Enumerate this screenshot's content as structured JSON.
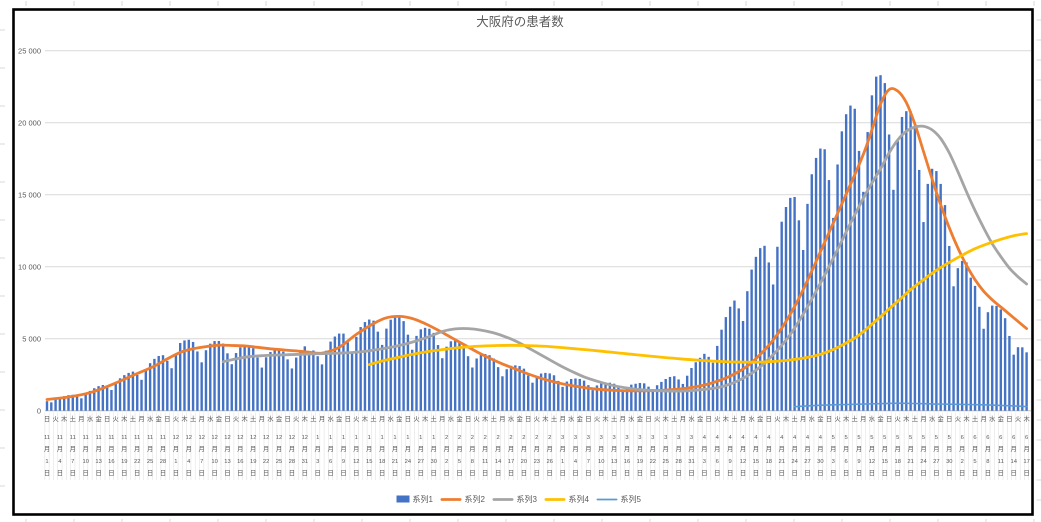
{
  "title": "大阪府の患者数",
  "colors": {
    "bar_blue": "#4472C4",
    "line_orange": "#ED7D31",
    "line_gray": "#A5A5A5",
    "line_yellow": "#FFC000",
    "line_lightblue": "#5B9BD5",
    "gridline": "#D9D9D9",
    "axis_line": "#BFBFBF",
    "label_text": "#595959",
    "chart_border": "#000000",
    "category_separator": "#E2E2E2",
    "sheet_tick": "#D9D9D9"
  },
  "chart_data": {
    "type": "combo bar+line",
    "title": "大阪府の患者数",
    "grid": "horizontal only",
    "y_axis": {
      "min": 0,
      "max": 25000,
      "tick_interval": 5000,
      "tick_values": [
        0,
        5000,
        10000,
        15000,
        20000,
        25000
      ],
      "tick_labels": [
        "0",
        "5 000",
        "10 000",
        "15 000",
        "20 000",
        "25 000"
      ]
    },
    "x_axis": {
      "unit": "day",
      "n_categories": 229,
      "start_date": "11月1日",
      "end_date": "6月17日",
      "weekday_label_interval_days": 2,
      "date_label_interval_days": 3,
      "weekday_labels": "日火木土月水金日火木土月水金日火木土月水金日火木土月水金日火木土月水金日火木土月水金日火木土月水金日火木土月水金日火木土月水金日火木土月水金日火木土月水金日火木土月水金日火木土月水金日火木土月水金日火木土月水金日火木土月水金日火木",
      "date_labels": [
        "11月1日",
        "11月4日",
        "11月7日",
        "11月10日",
        "11月13日",
        "11月16日",
        "11月19日",
        "11月22日",
        "11月25日",
        "11月28日",
        "12月1日",
        "12月4日",
        "12月7日",
        "12月10日",
        "12月13日",
        "12月16日",
        "12月19日",
        "12月22日",
        "12月25日",
        "12月28日",
        "12月31日",
        "1月3日",
        "1月6日",
        "1月9日",
        "1月12日",
        "1月15日",
        "1月18日",
        "1月21日",
        "1月24日",
        "1月27日",
        "1月30日",
        "2月2日",
        "2月5日",
        "2月8日",
        "2月11日",
        "2月14日",
        "2月17日",
        "2月20日",
        "2月23日",
        "2月26日",
        "3月1日",
        "3月4日",
        "3月7日",
        "3月10日",
        "3月13日",
        "3月16日",
        "3月19日",
        "3月22日",
        "3月25日",
        "3月28日",
        "3月31日",
        "4月3日",
        "4月6日",
        "4月9日",
        "4月12日",
        "4月15日",
        "4月18日",
        "4月21日",
        "4月24日",
        "4月27日",
        "4月30日",
        "5月3日",
        "5月6日",
        "5月9日",
        "5月12日",
        "5月15日",
        "5月18日",
        "5月21日",
        "5月24日",
        "5月27日",
        "5月30日",
        "6月2日",
        "6月5日",
        "6月8日",
        "6月11日",
        "6月14日",
        "6月17日"
      ]
    },
    "legend": {
      "position": "bottom",
      "items": [
        "系列1",
        "系列2",
        "系列3",
        "系列4",
        "系列5"
      ]
    },
    "series": [
      {
        "name": "系列1",
        "type": "bar",
        "color": "#4472C4",
        "values": [
          660,
          580,
          775,
          920,
          1010,
          1080,
          1105,
          1000,
          860,
          1125,
          1375,
          1560,
          1705,
          1785,
          1650,
          1440,
          1910,
          2250,
          2470,
          2625,
          2715,
          2480,
          2145,
          2825,
          3300,
          3600,
          3800,
          3855,
          3465,
          2950,
          3960,
          4700,
          4880,
          4925,
          4775,
          4115,
          3360,
          4200,
          4655,
          4835,
          4840,
          4660,
          3985,
          3230,
          4005,
          4400,
          4525,
          4515,
          4335,
          3695,
          2995,
          3710,
          4080,
          4200,
          4200,
          4105,
          3565,
          2935,
          3690,
          4200,
          4470,
          3990,
          4180,
          3785,
          3215,
          4165,
          4800,
          5150,
          5355,
          5355,
          4750,
          3995,
          5130,
          5810,
          6155,
          6330,
          6255,
          5490,
          4570,
          5700,
          6320,
          6550,
          6510,
          6220,
          5280,
          4235,
          5195,
          5650,
          5755,
          5690,
          5405,
          4560,
          3645,
          4445,
          4820,
          4890,
          4795,
          4520,
          3785,
          3000,
          3625,
          3900,
          3935,
          3855,
          3620,
          3025,
          2390,
          2880,
          3115,
          3150,
          3100,
          2920,
          2445,
          1945,
          2375,
          2580,
          2625,
          2590,
          2460,
          2070,
          1655,
          2025,
          2200,
          2235,
          2205,
          2090,
          1775,
          1430,
          1755,
          1915,
          1960,
          1945,
          1875,
          1610,
          1315,
          1635,
          1810,
          1870,
          1925,
          1900,
          1670,
          1395,
          1770,
          2000,
          2200,
          2345,
          2395,
          2170,
          1860,
          2430,
          2965,
          3365,
          3675,
          3950,
          3740,
          3330,
          4500,
          5625,
          6500,
          7220,
          7650,
          7105,
          6230,
          8300,
          9800,
          10685,
          11290,
          11450,
          10295,
          8765,
          11385,
          13125,
          14145,
          14780,
          14840,
          13220,
          11160,
          14365,
          16420,
          17555,
          18205,
          18155,
          16015,
          13390,
          17100,
          19400,
          20590,
          21190,
          20970,
          18040,
          15200,
          19350,
          21900,
          23200,
          23300,
          22750,
          19180,
          15340,
          18720,
          20400,
          20800,
          20790,
          19790,
          16720,
          13100,
          15750,
          16800,
          16640,
          15750,
          14280,
          11440,
          8640,
          9900,
          10400,
          10300,
          9240,
          8670,
          7215,
          5690,
          6840,
          7300,
          7280,
          7035,
          6425,
          5190,
          3890,
          4410,
          4400,
          4055
        ]
      },
      {
        "name": "系列2",
        "type": "line",
        "color": "#ED7D31",
        "points": [
          [
            0,
            780
          ],
          [
            5,
            950
          ],
          [
            10,
            1250
          ],
          [
            15,
            1800
          ],
          [
            20,
            2450
          ],
          [
            25,
            3100
          ],
          [
            28,
            3600
          ],
          [
            31,
            4050
          ],
          [
            34,
            4300
          ],
          [
            37,
            4450
          ],
          [
            40,
            4550
          ],
          [
            43,
            4530
          ],
          [
            46,
            4500
          ],
          [
            49,
            4400
          ],
          [
            52,
            4300
          ],
          [
            55,
            4220
          ],
          [
            58,
            4150
          ],
          [
            61,
            4060
          ],
          [
            64,
            4000
          ],
          [
            68,
            4400
          ],
          [
            72,
            5300
          ],
          [
            76,
            6050
          ],
          [
            79,
            6450
          ],
          [
            82,
            6550
          ],
          [
            85,
            6400
          ],
          [
            88,
            6050
          ],
          [
            91,
            5600
          ],
          [
            94,
            5100
          ],
          [
            97,
            4600
          ],
          [
            100,
            4100
          ],
          [
            103,
            3650
          ],
          [
            106,
            3250
          ],
          [
            109,
            2900
          ],
          [
            112,
            2550
          ],
          [
            115,
            2250
          ],
          [
            118,
            2000
          ],
          [
            121,
            1800
          ],
          [
            124,
            1650
          ],
          [
            127,
            1530
          ],
          [
            130,
            1450
          ],
          [
            133,
            1400
          ],
          [
            136,
            1380
          ],
          [
            139,
            1380
          ],
          [
            142,
            1400
          ],
          [
            145,
            1450
          ],
          [
            148,
            1530
          ],
          [
            151,
            1660
          ],
          [
            154,
            1860
          ],
          [
            157,
            2150
          ],
          [
            160,
            2550
          ],
          [
            163,
            3100
          ],
          [
            166,
            3900
          ],
          [
            169,
            4900
          ],
          [
            172,
            6200
          ],
          [
            175,
            7800
          ],
          [
            178,
            9700
          ],
          [
            181,
            11700
          ],
          [
            184,
            13700
          ],
          [
            187,
            15700
          ],
          [
            190,
            17800
          ],
          [
            192,
            19500
          ],
          [
            194,
            21300
          ],
          [
            196,
            22300
          ],
          [
            198,
            22200
          ],
          [
            200,
            21400
          ],
          [
            202,
            19900
          ],
          [
            204,
            18000
          ],
          [
            206,
            16100
          ],
          [
            208,
            14300
          ],
          [
            210,
            12700
          ],
          [
            212,
            11300
          ],
          [
            214,
            10100
          ],
          [
            216,
            9100
          ],
          [
            218,
            8300
          ],
          [
            220,
            7700
          ],
          [
            222,
            7200
          ],
          [
            224,
            6700
          ],
          [
            226,
            6200
          ],
          [
            228,
            5700
          ]
        ]
      },
      {
        "name": "系列3",
        "type": "line",
        "color": "#A5A5A5",
        "points": [
          [
            41,
            3400
          ],
          [
            44,
            3600
          ],
          [
            47,
            3750
          ],
          [
            50,
            3820
          ],
          [
            53,
            3860
          ],
          [
            56,
            3890
          ],
          [
            59,
            3920
          ],
          [
            62,
            3950
          ],
          [
            65,
            3970
          ],
          [
            68,
            4000
          ],
          [
            71,
            4040
          ],
          [
            74,
            4120
          ],
          [
            77,
            4250
          ],
          [
            80,
            4400
          ],
          [
            83,
            4600
          ],
          [
            86,
            4850
          ],
          [
            89,
            5150
          ],
          [
            92,
            5500
          ],
          [
            95,
            5680
          ],
          [
            98,
            5700
          ],
          [
            101,
            5600
          ],
          [
            104,
            5400
          ],
          [
            107,
            5100
          ],
          [
            110,
            4700
          ],
          [
            113,
            4200
          ],
          [
            116,
            3700
          ],
          [
            119,
            3200
          ],
          [
            122,
            2750
          ],
          [
            125,
            2350
          ],
          [
            128,
            2050
          ],
          [
            131,
            1800
          ],
          [
            134,
            1620
          ],
          [
            137,
            1500
          ],
          [
            140,
            1420
          ],
          [
            143,
            1380
          ],
          [
            146,
            1360
          ],
          [
            149,
            1380
          ],
          [
            152,
            1450
          ],
          [
            155,
            1550
          ],
          [
            158,
            1750
          ],
          [
            161,
            2100
          ],
          [
            164,
            2600
          ],
          [
            167,
            3300
          ],
          [
            170,
            4200
          ],
          [
            173,
            5300
          ],
          [
            176,
            6700
          ],
          [
            179,
            8300
          ],
          [
            182,
            10000
          ],
          [
            185,
            11800
          ],
          [
            188,
            13600
          ],
          [
            191,
            15300
          ],
          [
            194,
            16800
          ],
          [
            196,
            17900
          ],
          [
            198,
            18800
          ],
          [
            200,
            19400
          ],
          [
            202,
            19700
          ],
          [
            204,
            19750
          ],
          [
            206,
            19500
          ],
          [
            208,
            18900
          ],
          [
            210,
            17900
          ],
          [
            212,
            16600
          ],
          [
            214,
            15200
          ],
          [
            216,
            13900
          ],
          [
            218,
            12700
          ],
          [
            220,
            11600
          ],
          [
            222,
            10700
          ],
          [
            224,
            9900
          ],
          [
            226,
            9300
          ],
          [
            228,
            8800
          ]
        ]
      },
      {
        "name": "系列4",
        "type": "line",
        "color": "#FFC000",
        "points": [
          [
            75,
            3200
          ],
          [
            78,
            3450
          ],
          [
            81,
            3650
          ],
          [
            84,
            3850
          ],
          [
            87,
            4020
          ],
          [
            90,
            4160
          ],
          [
            93,
            4280
          ],
          [
            96,
            4380
          ],
          [
            99,
            4450
          ],
          [
            102,
            4500
          ],
          [
            105,
            4530
          ],
          [
            108,
            4540
          ],
          [
            111,
            4530
          ],
          [
            114,
            4500
          ],
          [
            117,
            4450
          ],
          [
            120,
            4380
          ],
          [
            123,
            4300
          ],
          [
            126,
            4220
          ],
          [
            129,
            4130
          ],
          [
            132,
            4040
          ],
          [
            135,
            3950
          ],
          [
            138,
            3860
          ],
          [
            141,
            3770
          ],
          [
            144,
            3690
          ],
          [
            147,
            3610
          ],
          [
            150,
            3540
          ],
          [
            153,
            3480
          ],
          [
            156,
            3430
          ],
          [
            159,
            3390
          ],
          [
            162,
            3370
          ],
          [
            165,
            3370
          ],
          [
            168,
            3400
          ],
          [
            171,
            3460
          ],
          [
            174,
            3560
          ],
          [
            177,
            3700
          ],
          [
            180,
            3920
          ],
          [
            183,
            4250
          ],
          [
            186,
            4700
          ],
          [
            189,
            5250
          ],
          [
            192,
            6000
          ],
          [
            195,
            6800
          ],
          [
            198,
            7600
          ],
          [
            201,
            8400
          ],
          [
            204,
            9100
          ],
          [
            207,
            9750
          ],
          [
            210,
            10300
          ],
          [
            213,
            10800
          ],
          [
            216,
            11250
          ],
          [
            219,
            11600
          ],
          [
            222,
            11900
          ],
          [
            225,
            12150
          ],
          [
            228,
            12300
          ]
        ]
      },
      {
        "name": "系列5",
        "type": "line",
        "color": "#5B9BD5",
        "points": [
          [
            174,
            280
          ],
          [
            178,
            350
          ],
          [
            182,
            400
          ],
          [
            186,
            430
          ],
          [
            190,
            460
          ],
          [
            194,
            490
          ],
          [
            198,
            520
          ],
          [
            202,
            500
          ],
          [
            206,
            470
          ],
          [
            210,
            450
          ],
          [
            214,
            430
          ],
          [
            218,
            410
          ],
          [
            222,
            370
          ],
          [
            226,
            320
          ],
          [
            228,
            290
          ]
        ]
      }
    ]
  }
}
